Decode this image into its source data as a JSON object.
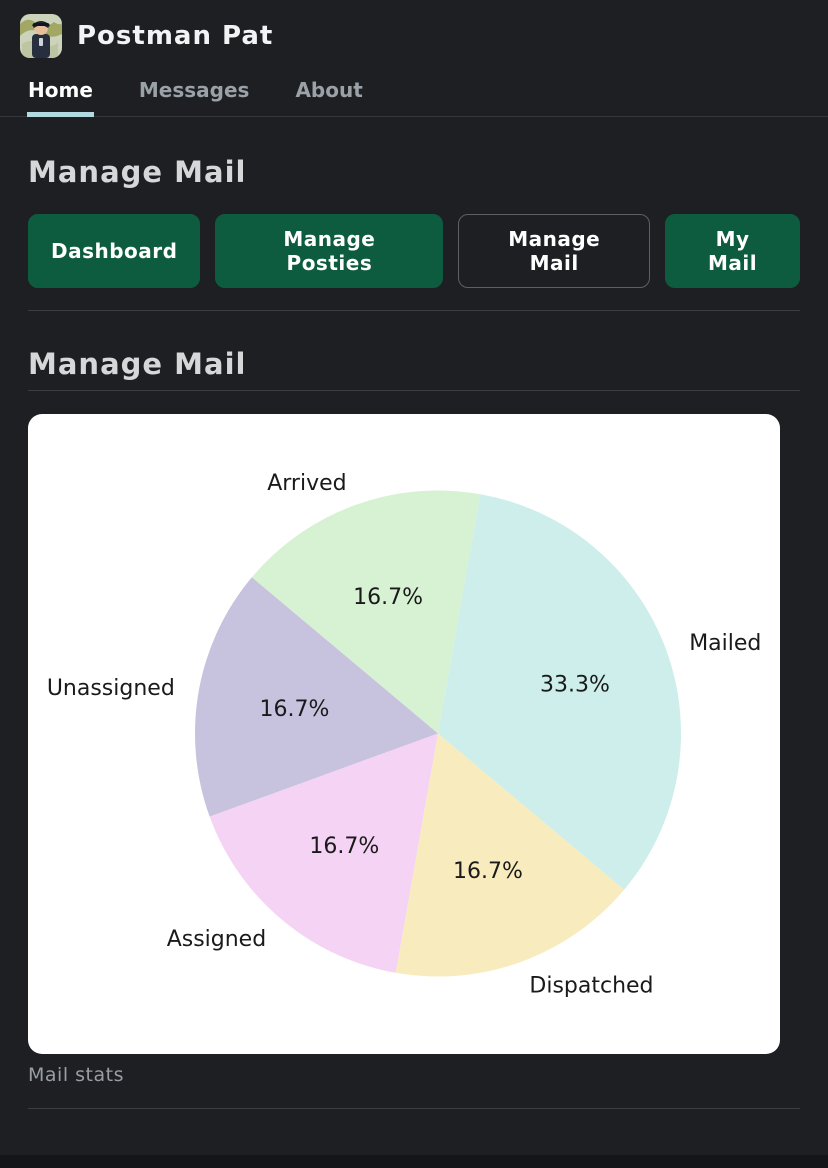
{
  "header": {
    "brand": "Postman Pat"
  },
  "nav": {
    "items": [
      {
        "label": "Home",
        "active": true
      },
      {
        "label": "Messages",
        "active": false
      },
      {
        "label": "About",
        "active": false
      }
    ]
  },
  "page": {
    "title": "Manage Mail",
    "section_title": "Manage Mail"
  },
  "toolbar": {
    "buttons": [
      {
        "label": "Dashboard",
        "variant": "filled"
      },
      {
        "label": "Manage Posties",
        "variant": "filled"
      },
      {
        "label": "Manage Mail",
        "variant": "outline"
      },
      {
        "label": "My Mail",
        "variant": "filled"
      }
    ]
  },
  "colors": {
    "page_bg": "#1d1f23",
    "accent_green": "#0e5c40",
    "tab_underline": "#b3d9e0",
    "card_bg": "#ffffff",
    "chart_text": "#1a1a1a"
  },
  "chart_data": {
    "type": "pie",
    "caption": "Mail stats",
    "labels": [
      "Mailed",
      "Arrived",
      "Unassigned",
      "Assigned",
      "Dispatched"
    ],
    "values": [
      2,
      1,
      1,
      1,
      1
    ],
    "percent_labels": [
      "33.3%",
      "16.7%",
      "16.7%",
      "16.7%",
      "16.7%"
    ],
    "colors": [
      "#cdeeea",
      "#d7f2d3",
      "#c7c2dd",
      "#f4d3f4",
      "#f8ecbe"
    ],
    "start_angle_deg": -40,
    "direction": "counterclockwise",
    "label_distance": 1.1,
    "pct_distance": 0.6,
    "legend": "none"
  }
}
